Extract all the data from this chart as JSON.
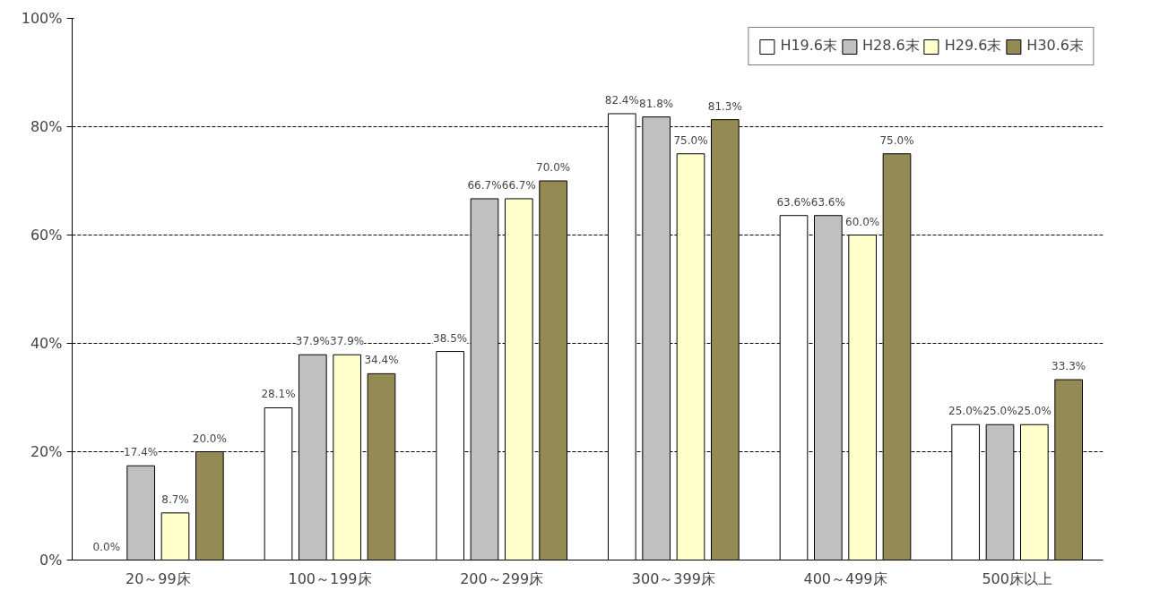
{
  "chart_data": {
    "type": "bar",
    "categories": [
      "20～99床",
      "100～199床",
      "200～299床",
      "300～399床",
      "400～499床",
      "500床以上"
    ],
    "series": [
      {
        "name": "H19.6末",
        "color": "#ffffff",
        "values": [
          0.0,
          28.1,
          38.5,
          82.4,
          63.6,
          25.0
        ],
        "value_labels": [
          "0.0%",
          "28.1%",
          "38.5%",
          "82.4%",
          "63.6%",
          "25.0%"
        ]
      },
      {
        "name": "H28.6末",
        "color": "#c0c0c0",
        "values": [
          17.4,
          37.9,
          66.7,
          81.8,
          63.6,
          25.0
        ],
        "value_labels": [
          "17.4%",
          "37.9%",
          "66.7%",
          "81.8%",
          "63.6%",
          "25.0%"
        ]
      },
      {
        "name": "H29.6末",
        "color": "#ffffcc",
        "values": [
          8.7,
          37.9,
          66.7,
          75.0,
          60.0,
          25.0
        ],
        "value_labels": [
          "8.7%",
          "37.9%",
          "66.7%",
          "75.0%",
          "60.0%",
          "25.0%"
        ]
      },
      {
        "name": "H30.6末",
        "color": "#948a54",
        "values": [
          20.0,
          34.4,
          70.0,
          81.3,
          75.0,
          33.3
        ],
        "value_labels": [
          "20.0%",
          "34.4%",
          "70.0%",
          "81.3%",
          "75.0%",
          "33.3%"
        ]
      }
    ],
    "ylim": [
      0,
      100
    ],
    "yticks": [
      {
        "value": 0,
        "label": "0%"
      },
      {
        "value": 20,
        "label": "20%"
      },
      {
        "value": 40,
        "label": "40%"
      },
      {
        "value": 60,
        "label": "60%"
      },
      {
        "value": 80,
        "label": "80%"
      },
      {
        "value": 100,
        "label": "100%"
      }
    ],
    "grid": "y",
    "legend": "top right"
  }
}
